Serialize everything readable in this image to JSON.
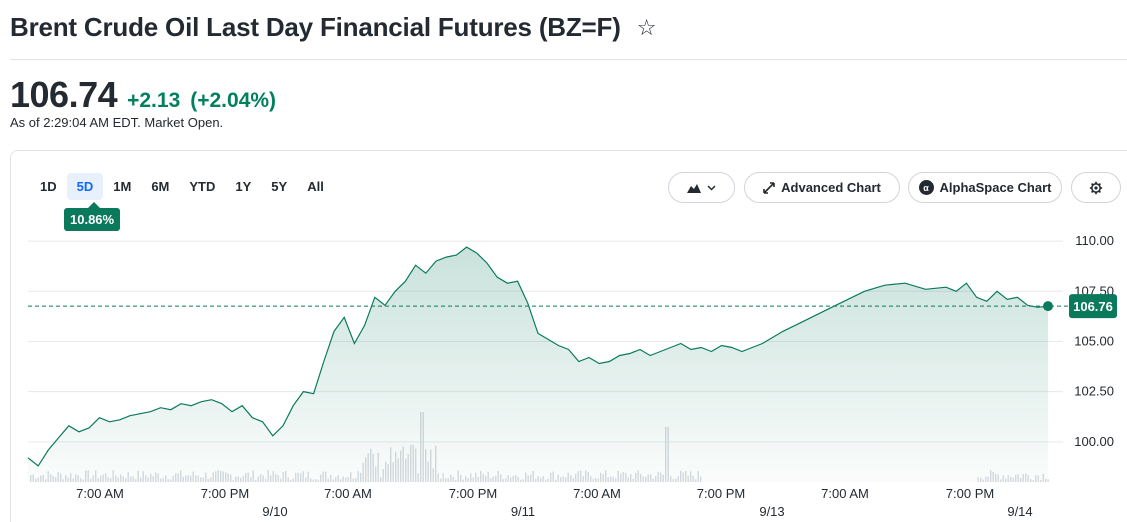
{
  "header": {
    "title": "Brent Crude Oil Last Day Financial Futures (BZ=F)",
    "star_icon": "☆"
  },
  "quote": {
    "price": "106.74",
    "change": "+2.13",
    "change_pct": "(+2.04%)",
    "as_of": "As of 2:29:04 AM EDT. Market Open.",
    "change_color": "#008060"
  },
  "toolbar": {
    "ranges": [
      "1D",
      "5D",
      "1M",
      "6M",
      "YTD",
      "1Y",
      "5Y",
      "All"
    ],
    "active_range": "5D",
    "range_change_badge": "10.86%",
    "advanced_chart_label": "Advanced Chart",
    "alphaspace_chart_label": "AlphaSpace Chart",
    "alphaspace_logo_letter": "α",
    "chart_type_icon": "mountain-chart-icon",
    "settings_icon": "gear-icon"
  },
  "chart_data": {
    "type": "area",
    "title": "",
    "xlabel": "",
    "ylabel": "",
    "ylim": [
      98,
      110.8
    ],
    "yticks": [
      "110.00",
      "107.50",
      "105.00",
      "102.50",
      "100.00"
    ],
    "ytick_values": [
      110,
      107.5,
      105,
      102.5,
      100
    ],
    "xaxis_time_labels": [
      "7:00 AM",
      "7:00 PM",
      "7:00 AM",
      "7:00 PM",
      "7:00 AM",
      "7:00 PM",
      "7:00 AM",
      "7:00 PM"
    ],
    "xaxis_date_labels": [
      "9/10",
      "9/11",
      "9/13",
      "9/14"
    ],
    "current_price_label": "106.76",
    "current_price": 106.76,
    "line_color": "#0b7a5c",
    "grid": true,
    "series": [
      {
        "t": [
          0,
          0.01,
          0.02,
          0.03,
          0.04,
          0.05,
          0.06,
          0.07,
          0.08,
          0.09,
          0.1,
          0.11,
          0.12,
          0.13,
          0.14,
          0.15,
          0.16,
          0.17,
          0.18,
          0.19,
          0.2,
          0.21,
          0.22,
          0.23,
          0.24,
          0.25,
          0.26,
          0.27,
          0.28,
          0.29,
          0.3,
          0.31,
          0.32,
          0.33,
          0.34,
          0.35,
          0.36,
          0.37,
          0.38,
          0.39,
          0.4,
          0.41,
          0.42,
          0.43,
          0.44,
          0.45,
          0.46,
          0.47,
          0.48,
          0.49,
          0.5,
          0.51,
          0.52,
          0.53,
          0.54,
          0.55,
          0.56,
          0.57,
          0.58,
          0.59,
          0.6,
          0.61,
          0.62,
          0.63,
          0.64,
          0.65,
          0.66,
          0.67,
          0.68,
          0.69,
          0.7,
          0.72,
          0.74,
          0.76,
          0.78,
          0.8,
          0.82,
          0.84,
          0.86,
          0.88,
          0.9,
          0.91,
          0.92,
          0.93,
          0.94,
          0.95,
          0.96,
          0.97,
          0.98,
          0.99,
          1.0
        ],
        "values": [
          99.2,
          98.8,
          99.6,
          100.2,
          100.8,
          100.5,
          100.7,
          101.2,
          101.0,
          101.1,
          101.3,
          101.4,
          101.5,
          101.7,
          101.6,
          101.9,
          101.8,
          102.0,
          102.1,
          101.9,
          101.5,
          101.8,
          101.2,
          101.0,
          100.3,
          100.8,
          101.8,
          102.5,
          102.4,
          104.0,
          105.5,
          106.2,
          104.9,
          105.8,
          107.2,
          106.8,
          107.5,
          108.0,
          108.8,
          108.4,
          109.0,
          109.2,
          109.3,
          109.7,
          109.4,
          108.9,
          108.2,
          107.9,
          108.0,
          106.9,
          105.4,
          105.1,
          104.8,
          104.6,
          104.0,
          104.2,
          103.9,
          104.0,
          104.3,
          104.4,
          104.6,
          104.3,
          104.5,
          104.7,
          104.9,
          104.6,
          104.7,
          104.5,
          104.8,
          104.7,
          104.5,
          104.9,
          105.5,
          106.0,
          106.5,
          107.0,
          107.5,
          107.8,
          107.9,
          107.6,
          107.7,
          107.5,
          107.9,
          107.2,
          107.0,
          107.5,
          107.1,
          107.2,
          106.8,
          106.7,
          106.76
        ]
      }
    ]
  }
}
